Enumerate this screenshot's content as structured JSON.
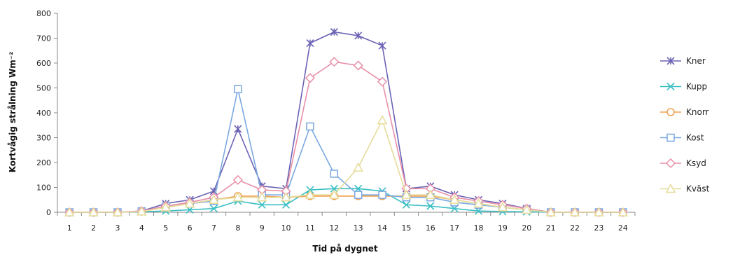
{
  "chart_data": {
    "type": "line",
    "title": "",
    "xlabel": "Tid på dygnet",
    "ylabel": "Kortvågig strålning Wm⁻²",
    "ylim": [
      0,
      800
    ],
    "yticks": [
      0,
      100,
      200,
      300,
      400,
      500,
      600,
      700,
      800
    ],
    "x": [
      1,
      2,
      3,
      4,
      5,
      6,
      7,
      8,
      9,
      10,
      11,
      12,
      13,
      14,
      15,
      16,
      17,
      18,
      19,
      20,
      21,
      22,
      23,
      24
    ],
    "grid": false,
    "legend_position": "right",
    "series": [
      {
        "name": "Kner",
        "color": "#6b63b5",
        "marker": "x-star",
        "values": [
          0,
          0,
          0,
          5,
          35,
          50,
          85,
          335,
          105,
          95,
          680,
          725,
          710,
          670,
          95,
          105,
          70,
          50,
          35,
          15,
          0,
          0,
          0,
          0
        ]
      },
      {
        "name": "Kupp",
        "color": "#3bbfc4",
        "marker": "x",
        "values": [
          0,
          0,
          0,
          2,
          5,
          10,
          15,
          45,
          30,
          30,
          90,
          95,
          95,
          85,
          30,
          25,
          15,
          5,
          3,
          2,
          0,
          0,
          0,
          0
        ]
      },
      {
        "name": "Knorr",
        "color": "#f0a050",
        "marker": "circle",
        "values": [
          0,
          0,
          0,
          3,
          20,
          35,
          50,
          65,
          65,
          60,
          65,
          65,
          65,
          65,
          65,
          65,
          50,
          35,
          20,
          10,
          0,
          0,
          0,
          0
        ]
      },
      {
        "name": "Kost",
        "color": "#7aa8e0",
        "marker": "square",
        "values": [
          0,
          0,
          0,
          4,
          25,
          35,
          45,
          495,
          70,
          70,
          345,
          155,
          70,
          70,
          60,
          60,
          40,
          30,
          20,
          10,
          0,
          0,
          0,
          0
        ]
      },
      {
        "name": "Ksyd",
        "color": "#e88fa8",
        "marker": "diamond",
        "values": [
          0,
          0,
          0,
          5,
          25,
          40,
          60,
          130,
          90,
          85,
          540,
          605,
          590,
          525,
          95,
          95,
          60,
          45,
          30,
          15,
          0,
          0,
          0,
          0
        ]
      },
      {
        "name": "Kväst",
        "color": "#e6dc9a",
        "marker": "triangle",
        "values": [
          0,
          0,
          0,
          3,
          20,
          35,
          50,
          60,
          60,
          60,
          70,
          70,
          180,
          370,
          70,
          70,
          50,
          35,
          20,
          10,
          0,
          0,
          0,
          0
        ]
      }
    ]
  }
}
